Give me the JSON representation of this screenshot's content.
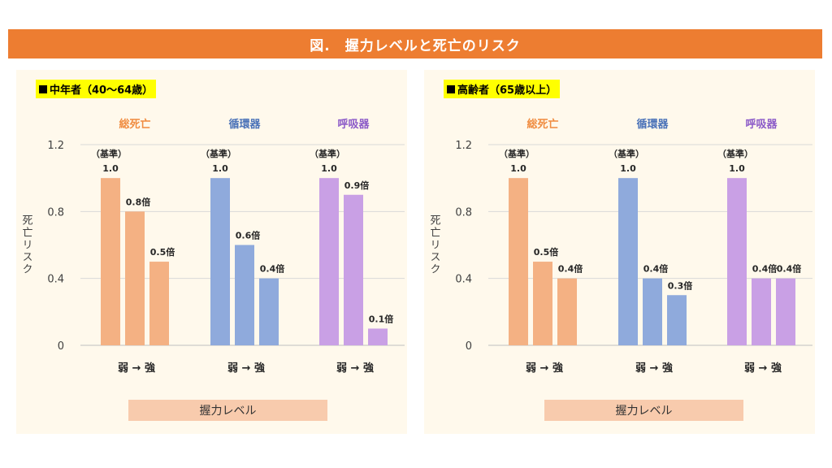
{
  "page_title": "図.　握力レベルと死亡のリスク",
  "colors": {
    "title_bg": "#ED7D31",
    "panel_bg": "#FFF9EC",
    "label_highlight": "#FFFF00",
    "xaxis_box": "#F8CBAD",
    "group_colors": [
      "#F4B183",
      "#8FAADC",
      "#C9A0E5"
    ],
    "group_title_colors": [
      "#F08C40",
      "#4A72B8",
      "#8C5BC8"
    ]
  },
  "chart_data": [
    {
      "type": "bar",
      "title": "■中年者（40～64歳）",
      "ylabel": "死亡リスク",
      "xlabel": "握力レベル",
      "ylim": [
        0,
        1.2
      ],
      "yticks": [
        "0",
        "0.4",
        "0.8",
        "1.2"
      ],
      "ytick_values": [
        0,
        0.4,
        0.8,
        1.2
      ],
      "grid": true,
      "group_axis_label": "弱 → 強",
      "baseline_note": "（基準）",
      "groups": [
        {
          "name": "総死亡",
          "values": [
            1.0,
            0.8,
            0.5
          ],
          "labels": [
            "1.0",
            "0.8倍",
            "0.5倍"
          ]
        },
        {
          "name": "循環器",
          "values": [
            1.0,
            0.6,
            0.4
          ],
          "labels": [
            "1.0",
            "0.6倍",
            "0.4倍"
          ]
        },
        {
          "name": "呼吸器",
          "values": [
            1.0,
            0.9,
            0.1
          ],
          "labels": [
            "1.0",
            "0.9倍",
            "0.1倍"
          ]
        }
      ]
    },
    {
      "type": "bar",
      "title": "■高齢者（65歳以上）",
      "ylabel": "死亡リスク",
      "xlabel": "握力レベル",
      "ylim": [
        0,
        1.2
      ],
      "yticks": [
        "0",
        "0.4",
        "0.8",
        "1.2"
      ],
      "ytick_values": [
        0,
        0.4,
        0.8,
        1.2
      ],
      "grid": true,
      "group_axis_label": "弱 → 強",
      "baseline_note": "（基準）",
      "groups": [
        {
          "name": "総死亡",
          "values": [
            1.0,
            0.5,
            0.4
          ],
          "labels": [
            "1.0",
            "0.5倍",
            "0.4倍"
          ]
        },
        {
          "name": "循環器",
          "values": [
            1.0,
            0.4,
            0.3
          ],
          "labels": [
            "1.0",
            "0.4倍",
            "0.3倍"
          ]
        },
        {
          "name": "呼吸器",
          "values": [
            1.0,
            0.4,
            0.4
          ],
          "labels": [
            "1.0",
            "0.4倍",
            "0.4倍"
          ]
        }
      ]
    }
  ]
}
